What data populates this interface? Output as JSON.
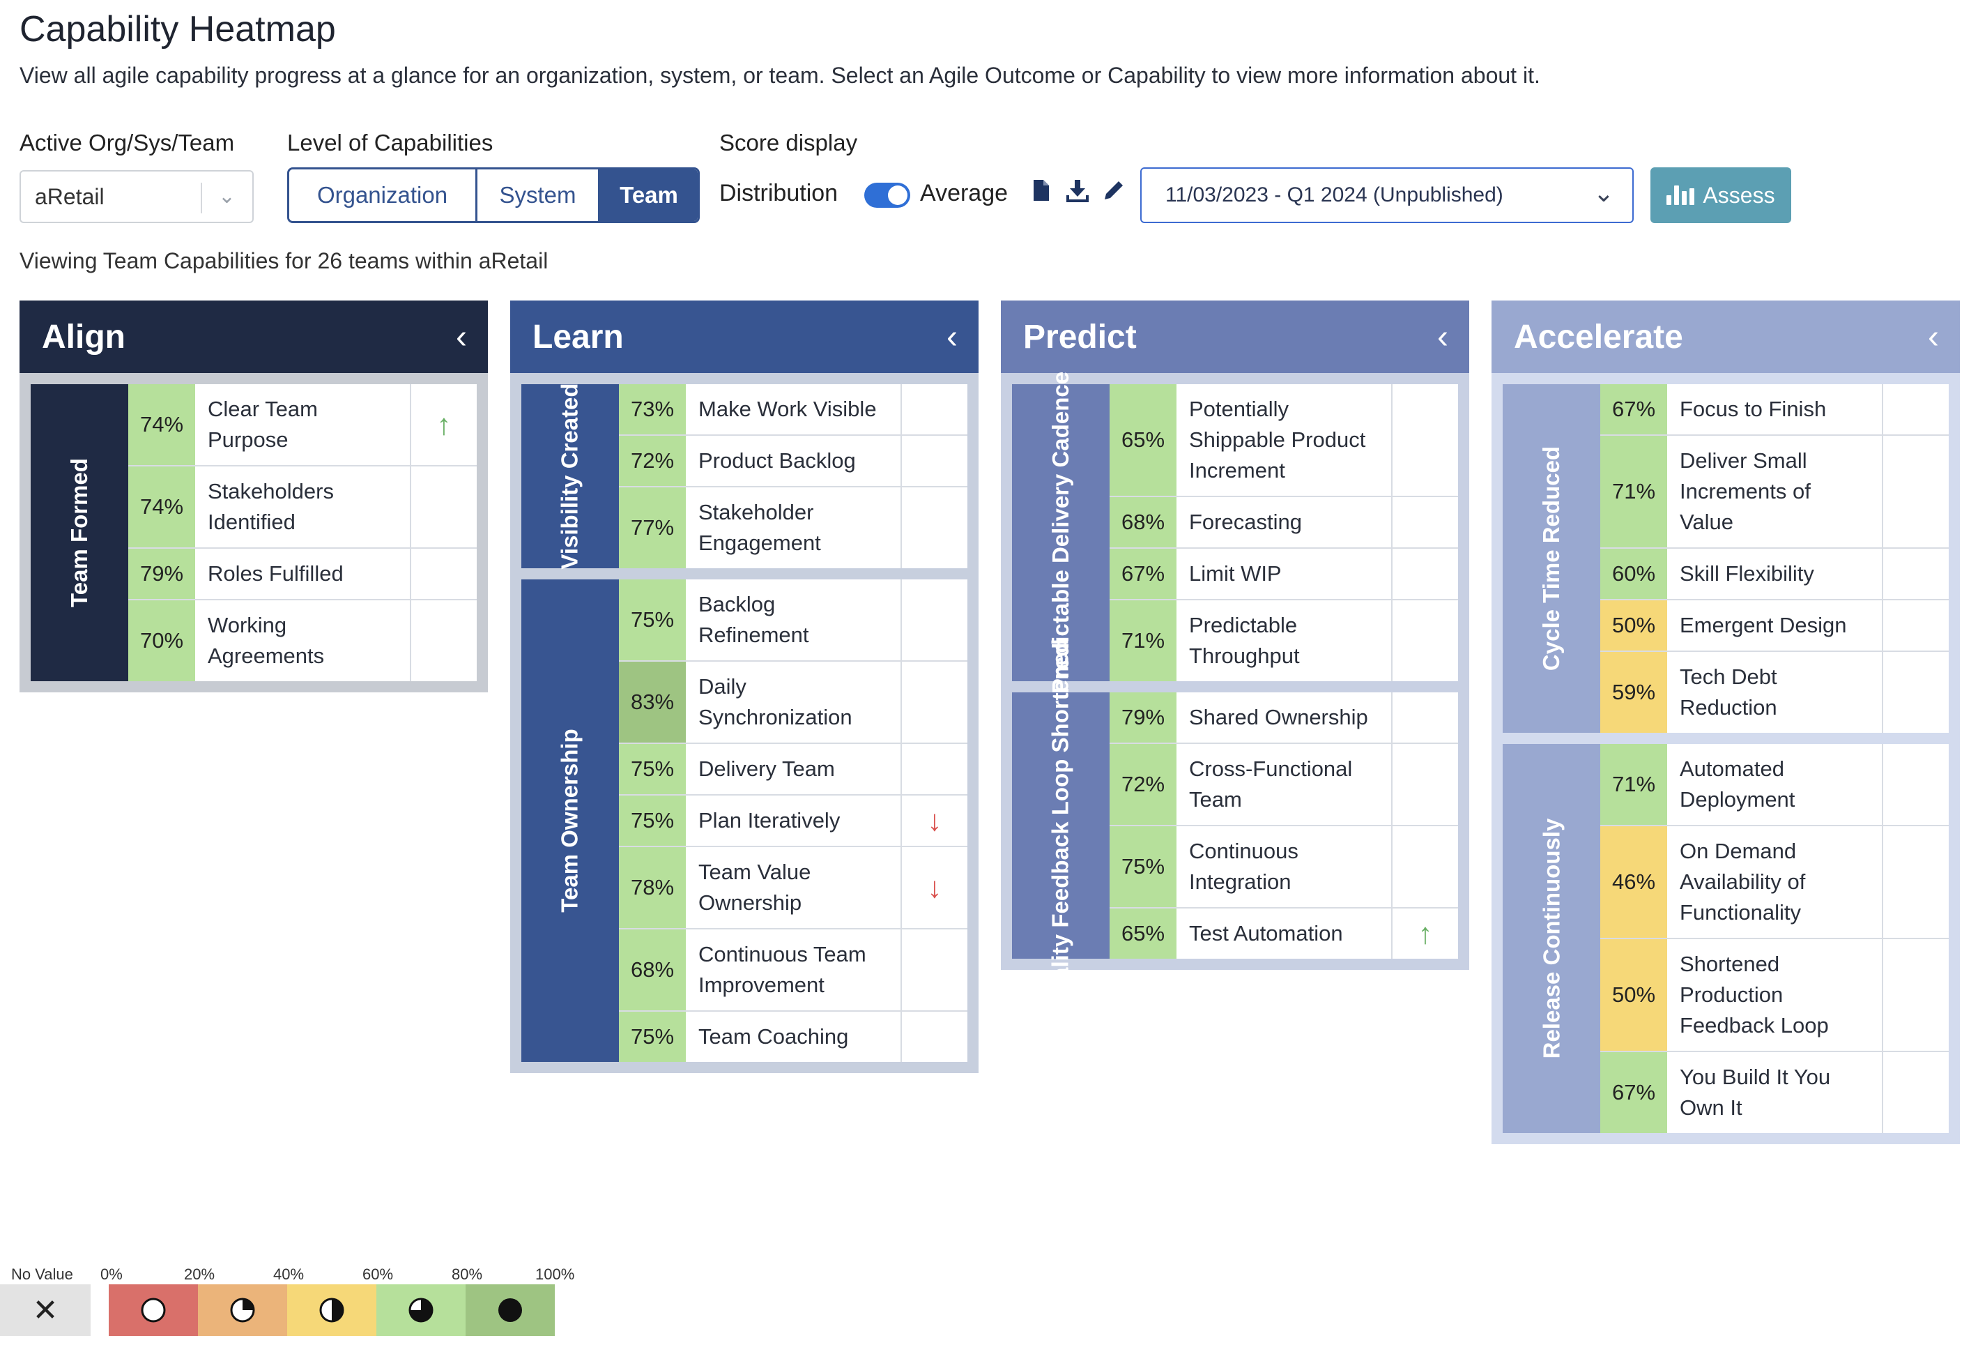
{
  "header": {
    "title": "Capability Heatmap",
    "description": "View all agile capability progress at a glance for an organization, system, or team. Select an Agile Outcome or Capability to view more information about it."
  },
  "filters": {
    "org_label": "Active Org/Sys/Team",
    "org_value": "aRetail",
    "level_label": "Level of Capabilities",
    "levels": [
      "Organization",
      "System",
      "Team"
    ],
    "level_selected": "Team",
    "score_label": "Score display",
    "distribution_label": "Distribution",
    "average_label": "Average",
    "toggle_on": true,
    "date_value": "11/03/2023 - Q1 2024 (Unpublished)",
    "assess_label": "Assess"
  },
  "viewing_text": "Viewing Team Capabilities for 26 teams within aRetail",
  "colors": {
    "align": "#1f2a44",
    "learn": "#385591",
    "predict": "#6b7db3",
    "accelerate": "#99a8d0",
    "band_0_20": "#d9706a",
    "band_20_40": "#ebb47a",
    "band_40_60": "#f6d878",
    "band_60_80": "#b6e09b",
    "band_80_100": "#9ec482",
    "no_value": "#e3e3e3"
  },
  "columns": [
    {
      "name": "Align",
      "groups": [
        {
          "label": "Team Formed",
          "items": [
            {
              "pct": "74%",
              "value": 74,
              "name": "Clear Team Purpose",
              "trend": "up"
            },
            {
              "pct": "74%",
              "value": 74,
              "name": "Stakeholders Identified",
              "trend": ""
            },
            {
              "pct": "79%",
              "value": 79,
              "name": "Roles Fulfilled",
              "trend": ""
            },
            {
              "pct": "70%",
              "value": 70,
              "name": "Working Agreements",
              "trend": ""
            }
          ]
        }
      ]
    },
    {
      "name": "Learn",
      "groups": [
        {
          "label": "Visibility Created",
          "items": [
            {
              "pct": "73%",
              "value": 73,
              "name": "Make Work Visible",
              "trend": ""
            },
            {
              "pct": "72%",
              "value": 72,
              "name": "Product Backlog",
              "trend": ""
            },
            {
              "pct": "77%",
              "value": 77,
              "name": "Stakeholder Engagement",
              "trend": ""
            }
          ]
        },
        {
          "label": "Team Ownership",
          "items": [
            {
              "pct": "75%",
              "value": 75,
              "name": "Backlog Refinement",
              "trend": ""
            },
            {
              "pct": "83%",
              "value": 83,
              "name": "Daily Synchronization",
              "trend": ""
            },
            {
              "pct": "75%",
              "value": 75,
              "name": "Delivery Team",
              "trend": ""
            },
            {
              "pct": "75%",
              "value": 75,
              "name": "Plan Iteratively",
              "trend": "down"
            },
            {
              "pct": "78%",
              "value": 78,
              "name": "Team Value Ownership",
              "trend": "down"
            },
            {
              "pct": "68%",
              "value": 68,
              "name": "Continuous Team Improvement",
              "trend": ""
            },
            {
              "pct": "75%",
              "value": 75,
              "name": "Team Coaching",
              "trend": ""
            }
          ]
        }
      ]
    },
    {
      "name": "Predict",
      "groups": [
        {
          "label": "Predictable Delivery Cadence",
          "items": [
            {
              "pct": "65%",
              "value": 65,
              "name": "Potentially Shippable Product Increment",
              "trend": ""
            },
            {
              "pct": "68%",
              "value": 68,
              "name": "Forecasting",
              "trend": ""
            },
            {
              "pct": "67%",
              "value": 67,
              "name": "Limit WIP",
              "trend": ""
            },
            {
              "pct": "71%",
              "value": 71,
              "name": "Predictable Throughput",
              "trend": ""
            }
          ]
        },
        {
          "label": "Quality Feedback Loop Shortened",
          "items": [
            {
              "pct": "79%",
              "value": 79,
              "name": "Shared Ownership",
              "trend": ""
            },
            {
              "pct": "72%",
              "value": 72,
              "name": "Cross-Functional Team",
              "trend": ""
            },
            {
              "pct": "75%",
              "value": 75,
              "name": "Continuous Integration",
              "trend": ""
            },
            {
              "pct": "65%",
              "value": 65,
              "name": "Test Automation",
              "trend": "up"
            }
          ]
        }
      ]
    },
    {
      "name": "Accelerate",
      "groups": [
        {
          "label": "Cycle Time Reduced",
          "items": [
            {
              "pct": "67%",
              "value": 67,
              "name": "Focus to Finish",
              "trend": ""
            },
            {
              "pct": "71%",
              "value": 71,
              "name": "Deliver Small Increments of Value",
              "trend": ""
            },
            {
              "pct": "60%",
              "value": 60,
              "name": "Skill Flexibility",
              "trend": ""
            },
            {
              "pct": "50%",
              "value": 50,
              "name": "Emergent Design",
              "trend": ""
            },
            {
              "pct": "59%",
              "value": 59,
              "name": "Tech Debt Reduction",
              "trend": ""
            }
          ]
        },
        {
          "label": "Release Continuously",
          "items": [
            {
              "pct": "71%",
              "value": 71,
              "name": "Automated Deployment",
              "trend": ""
            },
            {
              "pct": "46%",
              "value": 46,
              "name": "On Demand Availability of Functionality",
              "trend": ""
            },
            {
              "pct": "50%",
              "value": 50,
              "name": "Shortened Production Feedback Loop",
              "trend": ""
            },
            {
              "pct": "67%",
              "value": 67,
              "name": "You Build It You Own It",
              "trend": ""
            }
          ]
        }
      ]
    }
  ],
  "legend": {
    "no_value_label": "No Value",
    "no_value_symbol": "✕",
    "ticks": [
      "0%",
      "20%",
      "40%",
      "60%",
      "80%",
      "100%"
    ]
  }
}
